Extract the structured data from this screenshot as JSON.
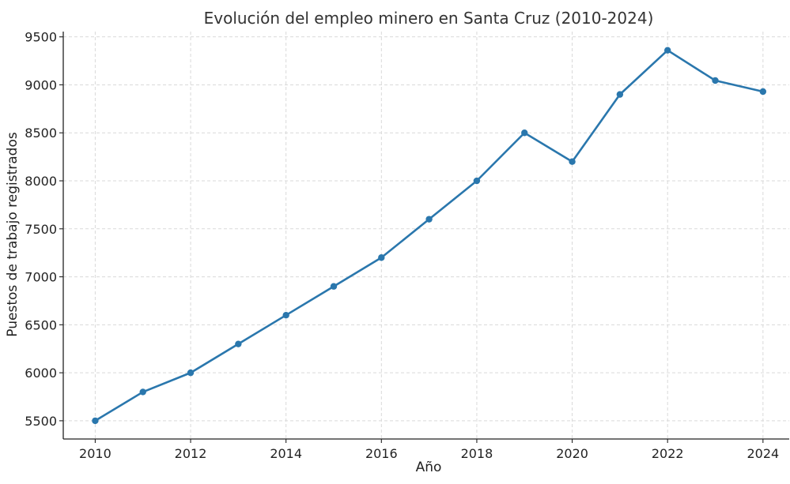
{
  "chart_data": {
    "type": "line",
    "title": "Evolución del empleo minero en Santa Cruz (2010-2024)",
    "xlabel": "Año",
    "ylabel": "Puestos de trabajo registrados",
    "x": [
      2010,
      2011,
      2012,
      2013,
      2014,
      2015,
      2016,
      2017,
      2018,
      2019,
      2020,
      2021,
      2022,
      2023,
      2024
    ],
    "series": [
      {
        "name": "",
        "values": [
          5500,
          5800,
          6000,
          6300,
          6600,
          6900,
          7200,
          7600,
          8000,
          8500,
          8200,
          8900,
          9360,
          9045,
          8930
        ]
      }
    ],
    "xlim": [
      2009.33,
      2024.55
    ],
    "ylim": [
      5310,
      9555
    ],
    "xticks": [
      "2010",
      "2012",
      "2014",
      "2016",
      "2018",
      "2020",
      "2022",
      "2024"
    ],
    "yticks": [
      "5500",
      "6000",
      "6500",
      "7000",
      "7500",
      "8000",
      "8500",
      "9000",
      "9500"
    ],
    "grid": true,
    "line_color": "#2a77ad",
    "marker_color": "#2a77ad",
    "grid_color": "#d9d9d9",
    "axis_color": "#222222",
    "text_color": "#222222",
    "title_color": "#333333"
  }
}
